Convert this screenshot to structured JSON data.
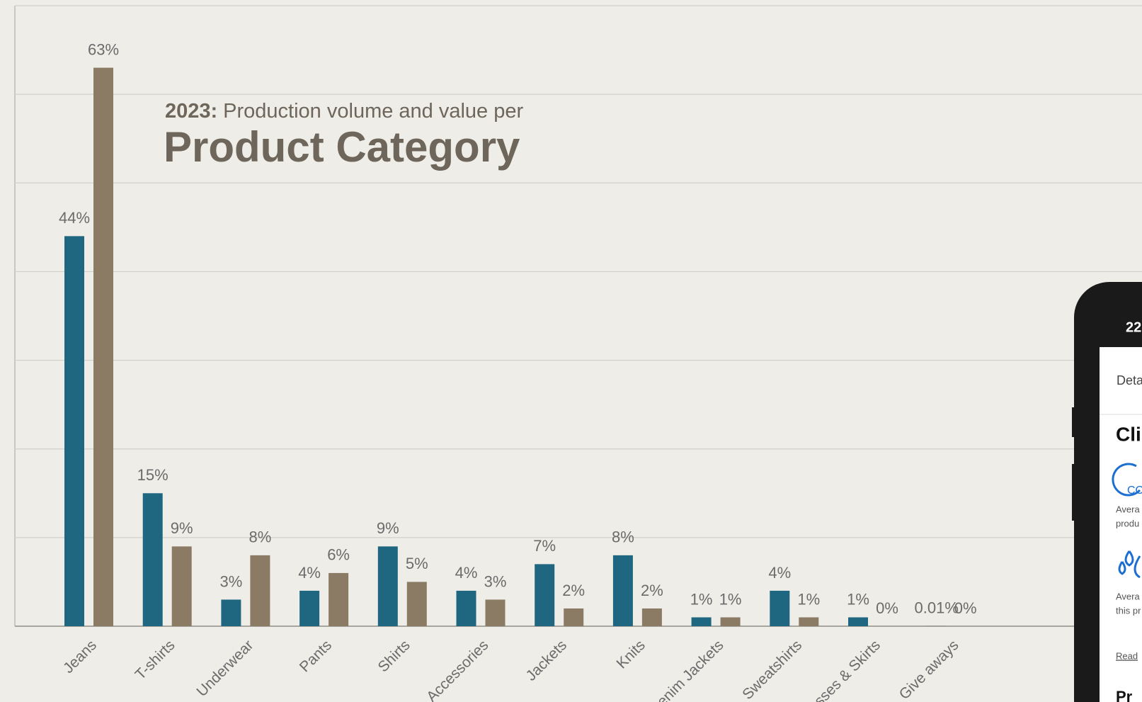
{
  "chart_data": {
    "type": "bar",
    "title_prefix": "2023:",
    "subtitle": "Production volume and value per",
    "title": "Product Category",
    "categories": [
      "Jeans",
      "T-shirts",
      "Underwear",
      "Pants",
      "Shirts",
      "Accessories",
      "Jackets",
      "Knits",
      "Denim Jackets",
      "Sweatshirts",
      "Dresses & Skirts",
      "Give aways"
    ],
    "series": [
      {
        "color": "#1f6680",
        "values": [
          44,
          15,
          3,
          4,
          9,
          4,
          7,
          8,
          1,
          4,
          1,
          0.01
        ],
        "value_labels": [
          "44%",
          "15%",
          "3%",
          "4%",
          "9%",
          "4%",
          "7%",
          "8%",
          "1%",
          "4%",
          "1%",
          "0.01%"
        ]
      },
      {
        "color": "#8b7b65",
        "values": [
          63,
          9,
          8,
          6,
          5,
          3,
          2,
          2,
          1,
          1,
          0,
          0
        ],
        "value_labels": [
          "63%",
          "9%",
          "8%",
          "6%",
          "5%",
          "3%",
          "2%",
          "2%",
          "1%",
          "1%",
          "0%",
          "0%"
        ]
      }
    ],
    "ylim": [
      0,
      70
    ],
    "yticks": [
      0,
      10,
      20,
      30,
      40,
      50,
      60,
      70
    ],
    "grid": true
  },
  "phone": {
    "time": "22",
    "tab": "Deta",
    "heading": "Cli",
    "icon_text": "CO",
    "text1a": "Avera",
    "text1b": "produ",
    "text2a": "Avera",
    "text2b": "this pr",
    "link": "Read",
    "heading2": "Pr"
  }
}
